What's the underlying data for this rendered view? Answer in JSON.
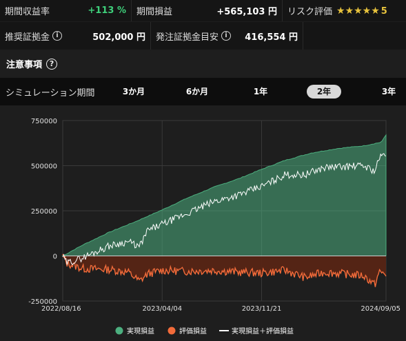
{
  "stats": {
    "return_rate_label": "期間収益率",
    "return_rate_value": "+113 %",
    "period_profit_label": "期間損益",
    "period_profit_value": "+565,103 円",
    "risk_label": "リスク評価",
    "risk_stars": "★★★★★",
    "risk_value": "5",
    "recommended_margin_label": "推奨証拠金",
    "recommended_margin_value": "502,000 円",
    "order_margin_label": "発注証拠金目安",
    "order_margin_value": "416,554 円"
  },
  "notice": {
    "label": "注意事項"
  },
  "simulation": {
    "label": "シミュレーション期間",
    "periods": [
      {
        "label": "3か月",
        "selected": false
      },
      {
        "label": "6か月",
        "selected": false
      },
      {
        "label": "1年",
        "selected": false
      },
      {
        "label": "2年",
        "selected": true
      },
      {
        "label": "3年",
        "selected": false
      }
    ]
  },
  "colors": {
    "realized": "#4caf7f",
    "unrealized": "#f26b3a",
    "total": "#ffffff",
    "positive_value": "#3ecf7a",
    "stars": "#e8c33d"
  },
  "chart_data": {
    "type": "area",
    "x_start": "2022/08/16",
    "x_end": "2024/09/05",
    "x_tick_labels": [
      "2022/08/16",
      "2023/04/04",
      "2023/11/21",
      "2024/09/05"
    ],
    "y_ticks": [
      750000,
      500000,
      250000,
      0,
      -250000
    ],
    "ylim": [
      -250000,
      750000
    ],
    "grid": true,
    "legend_position": "bottom",
    "series": [
      {
        "name": "実現損益",
        "x": [
          "2022/08/16",
          "2022/10/01",
          "2022/12/01",
          "2023/02/01",
          "2023/04/04",
          "2023/06/01",
          "2023/08/01",
          "2023/10/01",
          "2023/11/21",
          "2024/01/15",
          "2024/03/15",
          "2024/05/15",
          "2024/07/15",
          "2024/08/25",
          "2024/09/05"
        ],
        "values": [
          0,
          60000,
          130000,
          190000,
          255000,
          320000,
          380000,
          430000,
          480000,
          530000,
          570000,
          595000,
          610000,
          630000,
          670000
        ]
      },
      {
        "name": "評価損益",
        "x": [
          "2022/08/16",
          "2022/08/25",
          "2022/10/01",
          "2022/12/01",
          "2023/01/15",
          "2023/02/10",
          "2023/03/01",
          "2023/04/04",
          "2023/06/01",
          "2023/08/01",
          "2023/10/01",
          "2023/11/21",
          "2024/01/15",
          "2024/03/01",
          "2024/04/15",
          "2024/06/01",
          "2024/07/15",
          "2024/08/10",
          "2024/08/20",
          "2024/09/05"
        ],
        "values": [
          0,
          -40000,
          -70000,
          -75000,
          -90000,
          -140000,
          -100000,
          -80000,
          -85000,
          -80000,
          -90000,
          -95000,
          -80000,
          -120000,
          -90000,
          -100000,
          -110000,
          -160000,
          -90000,
          -100000
        ]
      },
      {
        "name": "実現損益＋評価損益",
        "x": [
          "2022/08/16",
          "2022/08/25",
          "2022/10/01",
          "2022/12/01",
          "2023/01/15",
          "2023/02/10",
          "2023/03/01",
          "2023/04/04",
          "2023/06/01",
          "2023/08/01",
          "2023/10/01",
          "2023/11/21",
          "2024/01/15",
          "2024/03/01",
          "2024/04/15",
          "2024/06/01",
          "2024/07/15",
          "2024/08/10",
          "2024/08/20",
          "2024/09/05"
        ],
        "values": [
          0,
          -40000,
          -10000,
          55000,
          80000,
          50000,
          140000,
          175000,
          235000,
          300000,
          340000,
          385000,
          450000,
          450000,
          490000,
          495000,
          500000,
          470000,
          540000,
          570000
        ]
      }
    ],
    "legend": [
      "実現損益",
      "評価損益",
      "実現損益＋評価損益"
    ]
  }
}
